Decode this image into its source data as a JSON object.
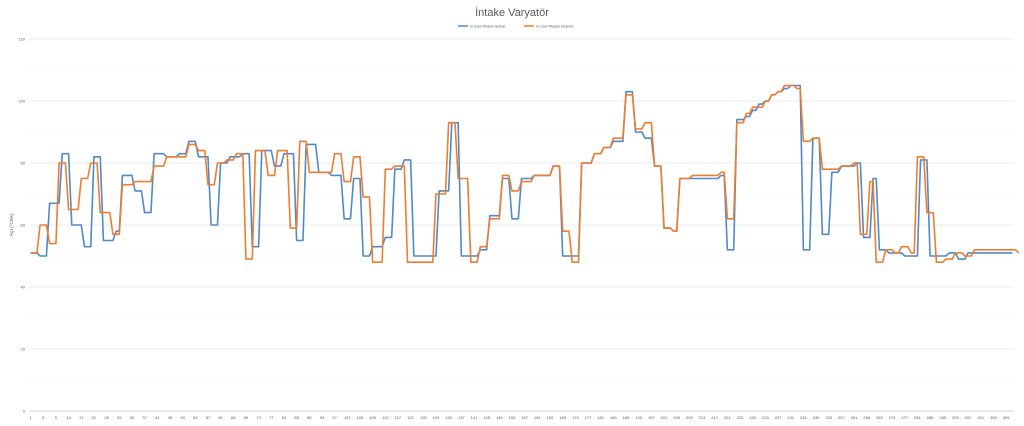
{
  "chart_data": {
    "type": "line",
    "title": "İntake Varyatör",
    "ylabel": "AÇI (°CRK)",
    "xlabel": "",
    "ylim": [
      0,
      120
    ],
    "yticks": [
      0,
      20,
      40,
      60,
      80,
      100,
      120
    ],
    "grid": true,
    "legend": "top",
    "colors": {
      "measured": "#4f8ac9",
      "target": "#ed7d31",
      "grid": "#e4e4e4",
      "axis": "#c8c8c8"
    },
    "series": [
      {
        "name": "In Cam Phaser Actual",
        "values": [
          51,
          51,
          51,
          50,
          50,
          50,
          67,
          67,
          67,
          67,
          83,
          83,
          83,
          60,
          60,
          60,
          60,
          53,
          53,
          53,
          82,
          82,
          82,
          55,
          55,
          55,
          55,
          58,
          58,
          76,
          76,
          76,
          76,
          71,
          71,
          71,
          64,
          64,
          64,
          83,
          83,
          83,
          83,
          82,
          82,
          82,
          82,
          83,
          83,
          83,
          87,
          87,
          87,
          82,
          82,
          82,
          82,
          60,
          60,
          60,
          80,
          80,
          80,
          82,
          82,
          82,
          82,
          83,
          83,
          83,
          53,
          53,
          53,
          84,
          84,
          84,
          84,
          79,
          79,
          79,
          83,
          83,
          83,
          83,
          55,
          55,
          55,
          86,
          86,
          86,
          86,
          77,
          77,
          77,
          77,
          76,
          76,
          76,
          76,
          62,
          62,
          62,
          75,
          75,
          75,
          50,
          50,
          50,
          53,
          53,
          53,
          53,
          56,
          56,
          56,
          78,
          78,
          78,
          81,
          81,
          81,
          50,
          50,
          50,
          50,
          50,
          50,
          50,
          50,
          71,
          71,
          71,
          71,
          93,
          93,
          93,
          50,
          50,
          50,
          50,
          50,
          50,
          52,
          52,
          52,
          63,
          63,
          63,
          63,
          75,
          75,
          75,
          62,
          62,
          62,
          75,
          75,
          75,
          75,
          76,
          76,
          76,
          76,
          76,
          76,
          79,
          79,
          79,
          50,
          50,
          50,
          50,
          50,
          50,
          80,
          80,
          80,
          80,
          83,
          83,
          83,
          85,
          85,
          85,
          87,
          87,
          87,
          87,
          103,
          103,
          103,
          90,
          90,
          90,
          88,
          88,
          88,
          79,
          79,
          79,
          59,
          59,
          59,
          58,
          58,
          75,
          75,
          75,
          75,
          75,
          75,
          75,
          75,
          75,
          75,
          75,
          75,
          75,
          76,
          76,
          52,
          52,
          52,
          94,
          94,
          94,
          95,
          95,
          97,
          97,
          99,
          99,
          100,
          100,
          102,
          102,
          103,
          103,
          104,
          104,
          105,
          105,
          105,
          105,
          52,
          52,
          52,
          88,
          88,
          88,
          57,
          57,
          57,
          77,
          77,
          77,
          79,
          79,
          79,
          79,
          79,
          80,
          80,
          56,
          56,
          56,
          75,
          75,
          52,
          52,
          52,
          51,
          51,
          51,
          51,
          51,
          50,
          50,
          50,
          50,
          50,
          81,
          81,
          81,
          50,
          50,
          50,
          50,
          50,
          50,
          51,
          51,
          51,
          49,
          49,
          49,
          51,
          51,
          51,
          51,
          51,
          51,
          51,
          51,
          51,
          51,
          51,
          51,
          51,
          51,
          51
        ]
      },
      {
        "name": "In Cam Phaser Desired",
        "values": [
          51,
          51,
          51,
          60,
          60,
          60,
          54,
          54,
          54,
          80,
          80,
          80,
          65,
          65,
          65,
          65,
          75,
          75,
          75,
          80,
          80,
          80,
          64,
          64,
          64,
          64,
          57,
          57,
          57,
          73,
          73,
          73,
          73,
          74,
          74,
          74,
          74,
          74,
          74,
          79,
          79,
          79,
          79,
          82,
          82,
          82,
          82,
          82,
          82,
          82,
          86,
          86,
          86,
          84,
          84,
          84,
          73,
          73,
          73,
          80,
          80,
          80,
          81,
          81,
          81,
          83,
          83,
          83,
          49,
          49,
          49,
          84,
          84,
          84,
          84,
          76,
          76,
          76,
          84,
          84,
          84,
          84,
          59,
          59,
          59,
          87,
          87,
          87,
          77,
          77,
          77,
          77,
          77,
          77,
          77,
          77,
          83,
          83,
          83,
          74,
          74,
          74,
          82,
          82,
          82,
          69,
          69,
          69,
          48,
          48,
          48,
          48,
          78,
          78,
          78,
          79,
          79,
          79,
          79,
          48,
          48,
          48,
          48,
          48,
          48,
          48,
          48,
          48,
          70,
          70,
          70,
          70,
          93,
          93,
          93,
          75,
          75,
          75,
          75,
          48,
          48,
          48,
          53,
          53,
          53,
          62,
          62,
          62,
          62,
          76,
          76,
          76,
          71,
          71,
          71,
          74,
          74,
          74,
          74,
          76,
          76,
          76,
          76,
          76,
          76,
          79,
          79,
          79,
          58,
          58,
          58,
          48,
          48,
          48,
          80,
          80,
          80,
          80,
          83,
          83,
          83,
          85,
          85,
          85,
          88,
          88,
          88,
          88,
          102,
          102,
          102,
          91,
          91,
          91,
          93,
          93,
          93,
          79,
          79,
          79,
          59,
          59,
          59,
          58,
          58,
          75,
          75,
          75,
          75,
          76,
          76,
          76,
          76,
          76,
          76,
          76,
          76,
          76,
          77,
          77,
          62,
          62,
          62,
          93,
          93,
          93,
          96,
          96,
          98,
          98,
          98,
          98,
          100,
          100,
          102,
          102,
          103,
          103,
          105,
          105,
          105,
          105,
          104,
          104,
          87,
          87,
          87,
          88,
          88,
          88,
          78,
          78,
          78,
          78,
          78,
          78,
          79,
          79,
          79,
          79,
          80,
          80,
          57,
          57,
          57,
          74,
          74,
          48,
          48,
          48,
          52,
          52,
          52,
          51,
          51,
          53,
          53,
          53,
          51,
          51,
          82,
          82,
          82,
          64,
          64,
          64,
          48,
          48,
          48,
          49,
          49,
          49,
          51,
          51,
          51,
          50,
          50,
          50,
          52,
          52,
          52,
          52,
          52,
          52,
          52,
          52,
          52,
          52,
          52,
          52,
          52,
          52,
          51
        ]
      }
    ]
  }
}
